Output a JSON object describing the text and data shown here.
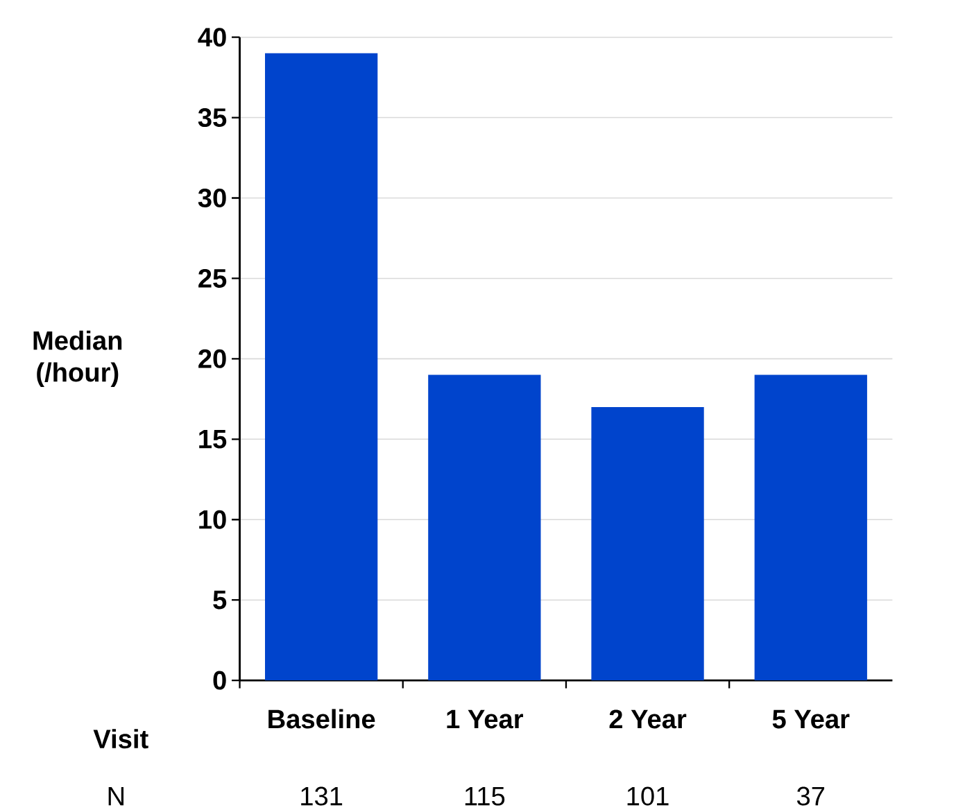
{
  "chart_data": {
    "type": "bar",
    "xlabel": "Visit",
    "ylabel": "Median (/hour)",
    "categories": [
      "Baseline",
      "1 Year",
      "2 Year",
      "5 Year"
    ],
    "values": [
      39,
      19,
      17,
      19
    ],
    "color": "#0044cc",
    "ylim": [
      0,
      40
    ],
    "yticks": [
      0,
      5,
      10,
      15,
      20,
      25,
      30,
      35,
      40
    ],
    "grid": "y",
    "annotations": [
      "N",
      "131",
      "115",
      "101",
      "37"
    ]
  }
}
